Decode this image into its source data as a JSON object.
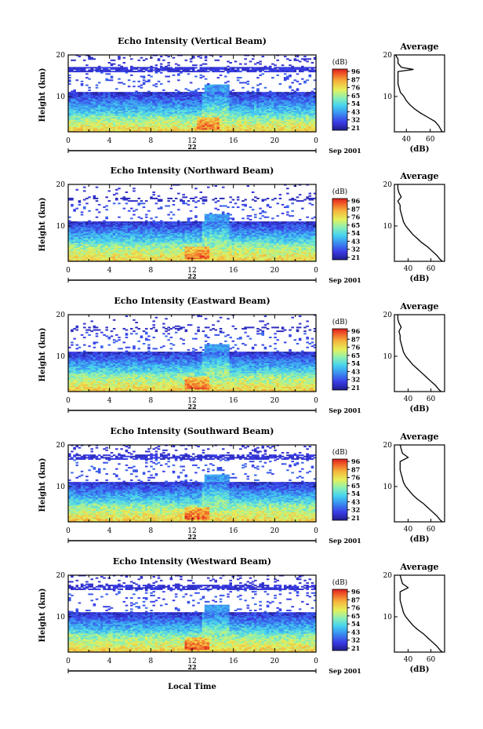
{
  "figure": {
    "footer_label": "Local Time",
    "time_ticks": [
      "0",
      "4",
      "8",
      "12",
      "16",
      "20",
      "0"
    ],
    "day_label": "22",
    "month_label": "Sep 2001",
    "colorbar_unit": "(dB)",
    "colorbar_ticks": [
      "96",
      "87",
      "76",
      "65",
      "54",
      "43",
      "32",
      "21"
    ],
    "ylabel": "Height (km)",
    "height_ticks": [
      "20",
      "10"
    ],
    "avg_title": "Average",
    "avg_xticks": [
      "40",
      "60"
    ],
    "avg_xlabel": "(dB)"
  },
  "chart_data": [
    {
      "type": "heatmap",
      "title": "Echo Intensity (Vertical Beam)",
      "beam": "vertical",
      "xlabel": "",
      "ylabel": "Height (km)",
      "xlim": [
        0,
        24
      ],
      "ylim": [
        1.5,
        20
      ],
      "colorbar_range_db": [
        21,
        96
      ],
      "features": {
        "tropopause_km": 16.5,
        "tropopause_strength": 1.0,
        "cloud_base_km": 5.5,
        "cloud_top_km": 11,
        "strong_echo_hour": 13.5
      },
      "profile": {
        "title": "Average",
        "xlabel": "(dB)",
        "xlim": [
          30,
          72
        ],
        "ylim": [
          1.5,
          20
        ],
        "height_km": [
          1.5,
          2,
          3,
          4,
          5,
          6,
          7,
          8,
          9,
          10,
          11,
          12,
          13,
          14,
          15,
          16,
          16.5,
          17,
          18,
          19,
          20
        ],
        "value_db": [
          70,
          69,
          67,
          64,
          58,
          52,
          47,
          43,
          40,
          38,
          35,
          34,
          33,
          33,
          33,
          33,
          46,
          36,
          33,
          33,
          31
        ]
      }
    },
    {
      "type": "heatmap",
      "title": "Echo Intensity (Northward Beam)",
      "beam": "northward",
      "xlabel": "",
      "ylabel": "Height (km)",
      "xlim": [
        0,
        24
      ],
      "ylim": [
        1.5,
        20
      ],
      "colorbar_range_db": [
        21,
        96
      ],
      "features": {
        "tropopause_km": 16.5,
        "tropopause_strength": 0.3,
        "cloud_base_km": 6,
        "cloud_top_km": 11,
        "strong_echo_hour": 12.5
      },
      "profile": {
        "title": "Average",
        "xlabel": "(dB)",
        "xlim": [
          28,
          72
        ],
        "ylim": [
          1.5,
          20
        ],
        "height_km": [
          1.5,
          2,
          3,
          4,
          5,
          6,
          7,
          8,
          9,
          10,
          11,
          12,
          13,
          14,
          15,
          16,
          17,
          18,
          19,
          20
        ],
        "value_db": [
          70,
          68,
          65,
          61,
          57,
          52,
          48,
          44,
          41,
          38,
          36,
          35,
          34,
          33,
          33,
          31,
          34,
          32,
          31,
          31
        ]
      }
    },
    {
      "type": "heatmap",
      "title": "Echo Intensity (Eastward Beam)",
      "beam": "eastward",
      "xlabel": "",
      "ylabel": "Height (km)",
      "xlim": [
        0,
        24
      ],
      "ylim": [
        1.5,
        20
      ],
      "colorbar_range_db": [
        21,
        96
      ],
      "features": {
        "tropopause_km": 16.5,
        "tropopause_strength": 0.3,
        "cloud_base_km": 6,
        "cloud_top_km": 11,
        "strong_echo_hour": 12.5
      },
      "profile": {
        "title": "Average",
        "xlabel": "(dB)",
        "xlim": [
          28,
          72
        ],
        "ylim": [
          1.5,
          20
        ],
        "height_km": [
          1.5,
          2,
          3,
          4,
          5,
          6,
          7,
          8,
          9,
          10,
          11,
          12,
          13,
          14,
          15,
          16,
          17,
          18,
          19,
          20
        ],
        "value_db": [
          69,
          67,
          64,
          60,
          56,
          52,
          48,
          44,
          41,
          38,
          36,
          35,
          34,
          33,
          33,
          32,
          34,
          32,
          31,
          31
        ]
      }
    },
    {
      "type": "heatmap",
      "title": "Echo Intensity (Southward Beam)",
      "beam": "southward",
      "xlabel": "",
      "ylabel": "Height (km)",
      "xlim": [
        0,
        24
      ],
      "ylim": [
        1.5,
        20
      ],
      "colorbar_range_db": [
        21,
        96
      ],
      "features": {
        "tropopause_km": 17,
        "tropopause_strength": 0.9,
        "cloud_base_km": 6,
        "cloud_top_km": 11,
        "strong_echo_hour": 12.5
      },
      "profile": {
        "title": "Average",
        "xlabel": "(dB)",
        "xlim": [
          28,
          72
        ],
        "ylim": [
          1.5,
          20
        ],
        "height_km": [
          1.5,
          2,
          3,
          4,
          5,
          6,
          7,
          8,
          9,
          10,
          11,
          12,
          13,
          14,
          15,
          16,
          17,
          18,
          19,
          20
        ],
        "value_db": [
          70,
          68,
          65,
          61,
          57,
          53,
          48,
          44,
          41,
          38,
          36,
          35,
          34,
          33,
          33,
          33,
          40,
          35,
          34,
          33
        ]
      }
    },
    {
      "type": "heatmap",
      "title": "Echo Intensity (Westward Beam)",
      "beam": "westward",
      "xlabel": "Local Time",
      "ylabel": "Height (km)",
      "xlim": [
        0,
        24
      ],
      "ylim": [
        1.5,
        20
      ],
      "colorbar_range_db": [
        21,
        96
      ],
      "features": {
        "tropopause_km": 17,
        "tropopause_strength": 0.9,
        "cloud_base_km": 6,
        "cloud_top_km": 11,
        "strong_echo_hour": 12.5
      },
      "profile": {
        "title": "Average",
        "xlabel": "(dB)",
        "xlim": [
          28,
          72
        ],
        "ylim": [
          1.5,
          20
        ],
        "height_km": [
          1.5,
          2,
          3,
          4,
          5,
          6,
          7,
          8,
          9,
          10,
          11,
          12,
          13,
          14,
          15,
          16,
          17,
          18,
          19,
          20
        ],
        "value_db": [
          70,
          68,
          65,
          61,
          57,
          53,
          48,
          44,
          41,
          38,
          36,
          35,
          34,
          33,
          33,
          33,
          40,
          35,
          34,
          33
        ]
      }
    }
  ]
}
